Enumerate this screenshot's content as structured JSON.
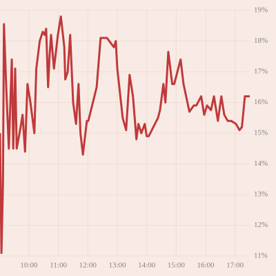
{
  "chart_data": {
    "type": "line",
    "color": "#c0393b",
    "grid": true,
    "x": [
      "09:01",
      "09:04",
      "09:07",
      "09:09",
      "09:14",
      "09:19",
      "09:25",
      "09:28",
      "09:32",
      "09:35",
      "09:43",
      "09:47",
      "09:52",
      "09:57",
      "10:03",
      "10:11",
      "10:15",
      "10:22",
      "10:28",
      "10:32",
      "10:35",
      "10:39",
      "10:42",
      "10:45",
      "10:51",
      "10:59",
      "11:05",
      "11:12",
      "11:14",
      "11:19",
      "11:24",
      "11:30",
      "11:36",
      "11:41",
      "11:45",
      "11:50",
      "11:58",
      "12:01",
      "12:18",
      "12:26",
      "12:39",
      "12:53",
      "12:57",
      "13:00",
      "13:11",
      "13:18",
      "13:25",
      "13:32",
      "13:39",
      "13:43",
      "13:49",
      "13:56",
      "14:00",
      "14:04",
      "14:23",
      "14:27",
      "14:34",
      "14:38",
      "14:44",
      "14:52",
      "14:56",
      "15:09",
      "15:15",
      "15:27",
      "15:36",
      "15:41",
      "15:51",
      "15:57",
      "16:03",
      "16:11",
      "16:17",
      "16:25",
      "16:32",
      "16:38",
      "16:45",
      "16:52",
      "17:02",
      "17:09",
      "17:14",
      "17:20",
      "17:30"
    ],
    "values": [
      15.0,
      11.1,
      13.4,
      18.55,
      16.4,
      14.5,
      17.4,
      14.5,
      17.1,
      14.5,
      15.2,
      15.6,
      14.4,
      16.6,
      16.0,
      15.0,
      17.1,
      18.0,
      18.3,
      18.2,
      18.4,
      16.5,
      17.5,
      18.2,
      17.1,
      18.2,
      18.8,
      17.8,
      16.75,
      17.0,
      18.2,
      16.0,
      15.3,
      16.6,
      15.0,
      14.3,
      15.4,
      15.4,
      16.5,
      18.1,
      18.1,
      17.8,
      18.0,
      17.1,
      15.5,
      15.1,
      16.9,
      16.2,
      14.8,
      15.3,
      15.0,
      15.3,
      14.9,
      14.9,
      15.5,
      15.75,
      16.6,
      16.0,
      17.65,
      16.6,
      16.6,
      17.4,
      16.6,
      15.7,
      15.9,
      15.9,
      16.2,
      15.6,
      15.9,
      15.75,
      16.2,
      15.4,
      16.2,
      15.6,
      15.4,
      15.4,
      15.3,
      15.1,
      15.2,
      16.2,
      16.2
    ],
    "xlim": [
      "09:01",
      "17:30"
    ],
    "xticks": [
      "10:00",
      "11:00",
      "12:00",
      "13:00",
      "14:00",
      "15:00",
      "16:00",
      "17:00"
    ],
    "ylim": [
      11,
      19
    ],
    "yticks": [
      {
        "value": 11,
        "label": "11%"
      },
      {
        "value": 12,
        "label": "12%"
      },
      {
        "value": 13,
        "label": "13%"
      },
      {
        "value": 14,
        "label": "14%"
      },
      {
        "value": 15,
        "label": "15%"
      },
      {
        "value": 16,
        "label": "16%"
      },
      {
        "value": 17,
        "label": "17%"
      },
      {
        "value": 18,
        "label": "18%"
      },
      {
        "value": 19,
        "label": "19%"
      }
    ]
  }
}
